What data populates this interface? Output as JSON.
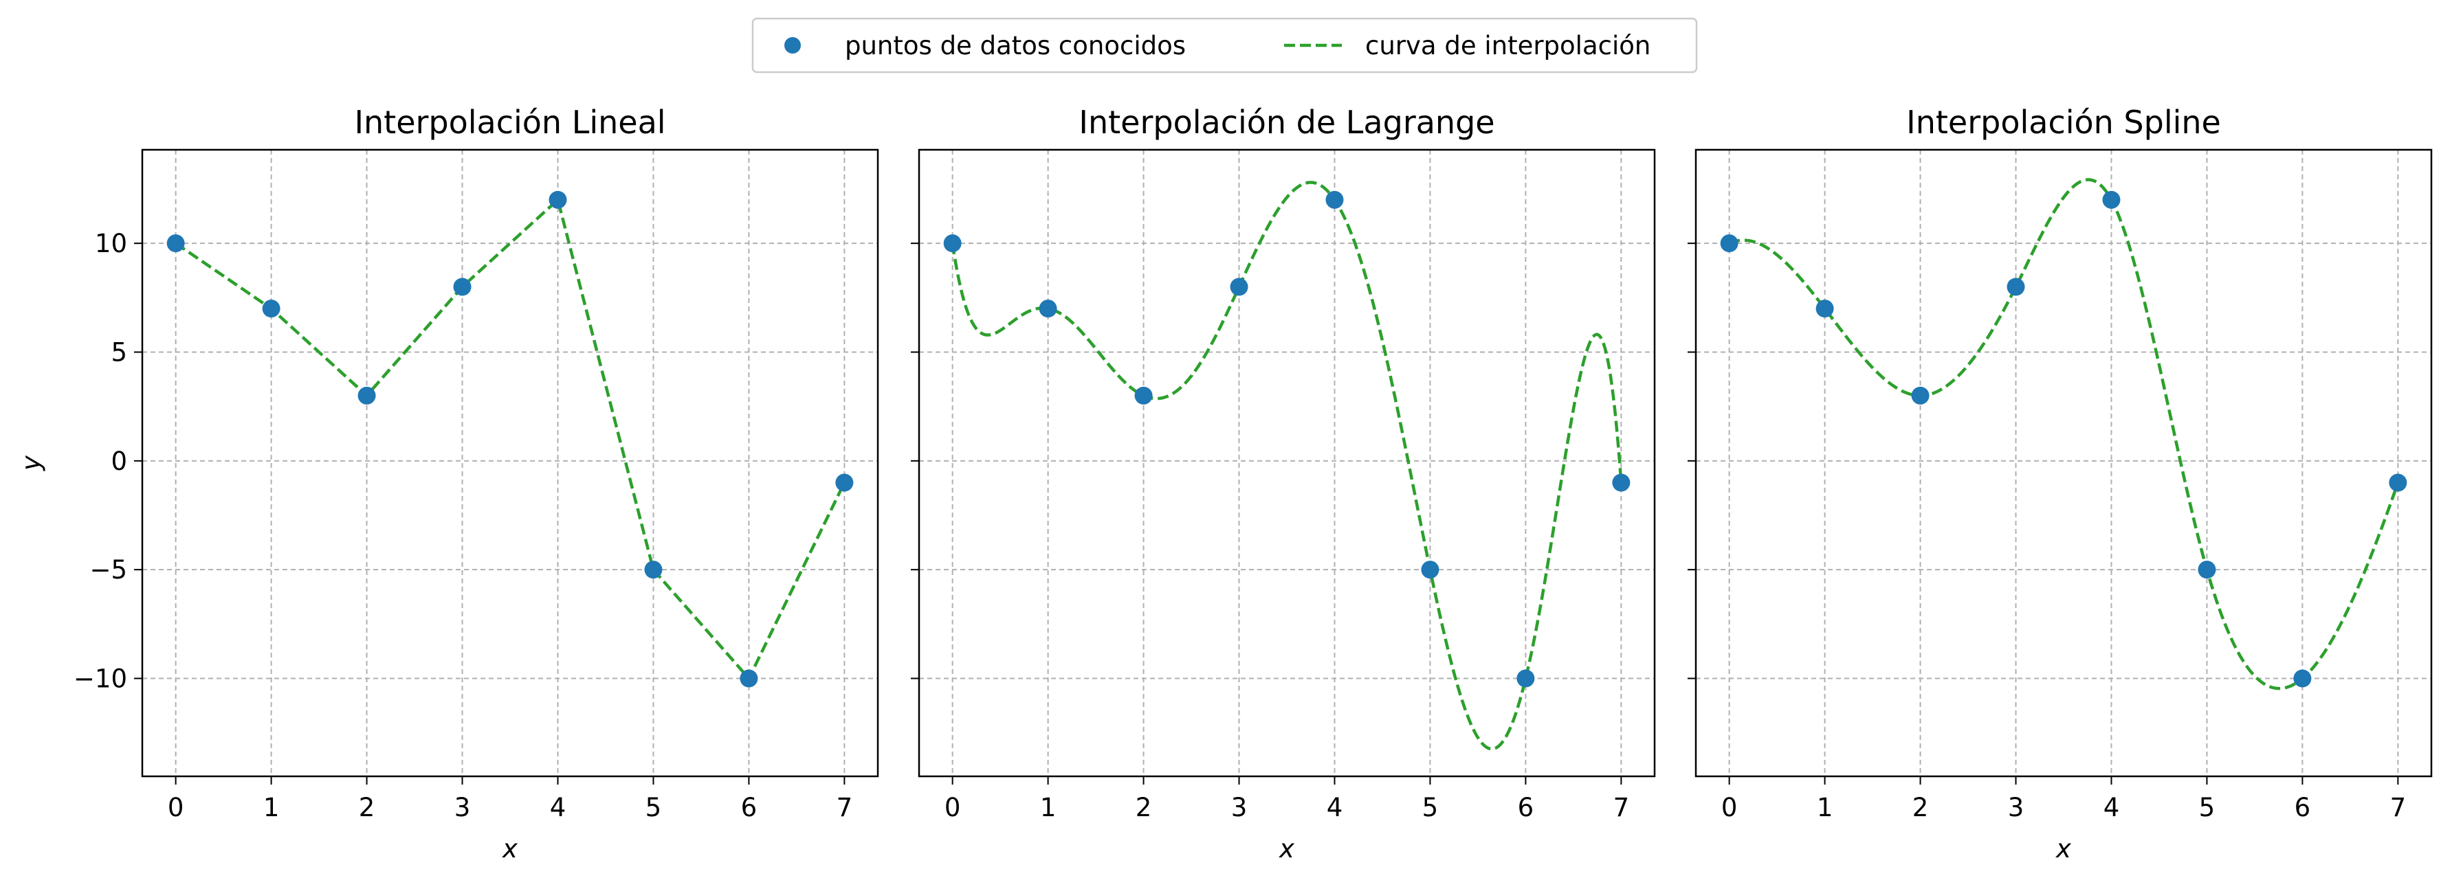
{
  "legend": {
    "items": [
      {
        "label": "puntos de datos conocidos",
        "marker": "circle"
      },
      {
        "label": "curva de interpolación",
        "marker": "dashed-line"
      }
    ]
  },
  "colors": {
    "points": "#1f77b4",
    "curve": "#2ca02c",
    "grid": "#b0b0b0"
  },
  "chart_data": [
    {
      "type": "line",
      "title": "Interpolación Lineal",
      "xlabel": "x",
      "ylabel": "y",
      "xlim": [
        -0.35,
        7.35
      ],
      "ylim": [
        -14.5,
        14.3
      ],
      "xticks": [
        0,
        1,
        2,
        3,
        4,
        5,
        6,
        7
      ],
      "yticks": [
        -10,
        -5,
        0,
        5,
        10
      ],
      "ytick_labels": [
        "−10",
        "−5",
        "0",
        "5",
        "10"
      ],
      "grid": true,
      "method": "linear",
      "series": [
        {
          "name": "puntos de datos conocidos",
          "x": [
            0,
            1,
            2,
            3,
            4,
            5,
            6,
            7
          ],
          "y": [
            10,
            7,
            3,
            8,
            12,
            -5,
            -10,
            -1
          ]
        }
      ]
    },
    {
      "type": "line",
      "title": "Interpolación de Lagrange",
      "xlabel": "x",
      "ylabel": "",
      "xlim": [
        -0.35,
        7.35
      ],
      "ylim": [
        -14.5,
        14.3
      ],
      "xticks": [
        0,
        1,
        2,
        3,
        4,
        5,
        6,
        7
      ],
      "yticks": [
        -10,
        -5,
        0,
        5,
        10
      ],
      "ytick_labels": [],
      "grid": true,
      "method": "lagrange",
      "series": [
        {
          "name": "puntos de datos conocidos",
          "x": [
            0,
            1,
            2,
            3,
            4,
            5,
            6,
            7
          ],
          "y": [
            10,
            7,
            3,
            8,
            12,
            -5,
            -10,
            -1
          ]
        }
      ]
    },
    {
      "type": "line",
      "title": "Interpolación Spline",
      "xlabel": "x",
      "ylabel": "",
      "xlim": [
        -0.35,
        7.35
      ],
      "ylim": [
        -14.5,
        14.3
      ],
      "xticks": [
        0,
        1,
        2,
        3,
        4,
        5,
        6,
        7
      ],
      "yticks": [
        -10,
        -5,
        0,
        5,
        10
      ],
      "ytick_labels": [],
      "grid": true,
      "method": "spline",
      "series": [
        {
          "name": "puntos de datos conocidos",
          "x": [
            0,
            1,
            2,
            3,
            4,
            5,
            6,
            7
          ],
          "y": [
            10,
            7,
            3,
            8,
            12,
            -5,
            -10,
            -1
          ]
        }
      ]
    }
  ]
}
